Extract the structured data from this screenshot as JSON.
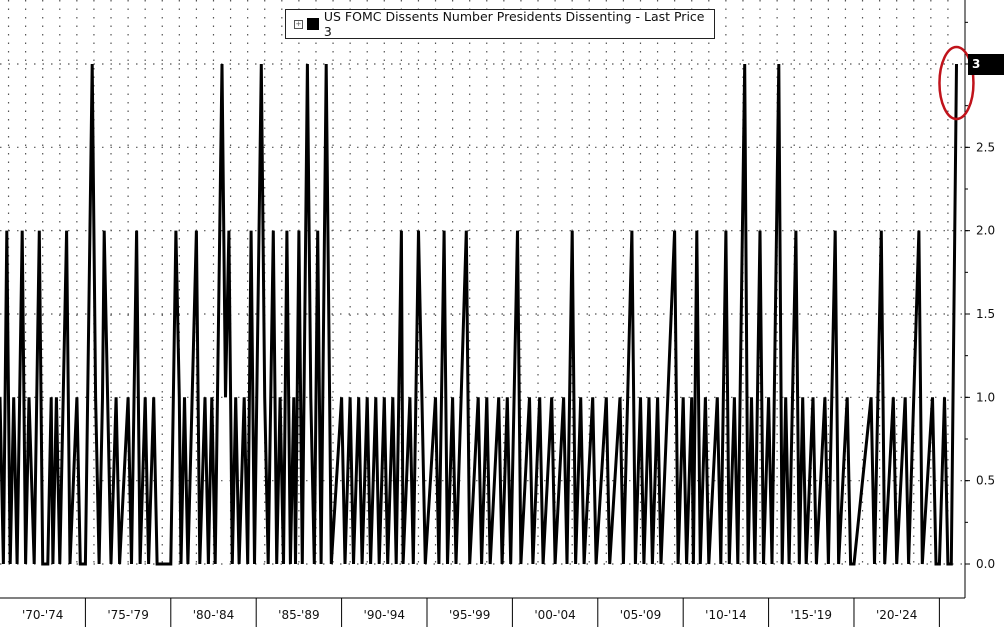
{
  "legend": {
    "label": "US FOMC Dissents Number Presidents Dissenting - Last Price 3"
  },
  "last_value_label": "3",
  "colors": {
    "line": "#000000",
    "annotation": "#c0131b",
    "grid": "#555555",
    "badge": "#000000"
  },
  "chart_data": {
    "type": "line",
    "title": "",
    "xlabel": "",
    "ylabel": "",
    "ylim": [
      0,
      3
    ],
    "yticks": [
      0.0,
      0.5,
      1.0,
      1.5,
      2.0,
      2.5,
      3.0
    ],
    "ytick_labels": [
      "0.0",
      "0.5",
      "1.0",
      "1.5",
      "2.0",
      "2.5",
      ""
    ],
    "x_range": [
      1970,
      2026.5
    ],
    "x_groups": [
      "'70-'74",
      "'75-'79",
      "'80-'84",
      "'85-'89",
      "'90-'94",
      "'95-'99",
      "'00-'04",
      "'05-'09",
      "'10-'14",
      "'15-'19",
      "'20-'24"
    ],
    "x_group_dividers": [
      1970,
      1975,
      1980,
      1985,
      1990,
      1995,
      2000,
      2005,
      2010,
      2015,
      2020,
      2025
    ],
    "grid": true,
    "legend_position": "top",
    "series": [
      {
        "name": "US FOMC Dissents Number Presidents Dissenting",
        "points": [
          [
            1970.0,
            1
          ],
          [
            1970.2,
            0
          ],
          [
            1970.4,
            2
          ],
          [
            1970.6,
            0
          ],
          [
            1970.8,
            1
          ],
          [
            1971.0,
            0
          ],
          [
            1971.3,
            2
          ],
          [
            1971.5,
            0
          ],
          [
            1971.7,
            1
          ],
          [
            1972.0,
            0
          ],
          [
            1972.3,
            2
          ],
          [
            1972.5,
            0
          ],
          [
            1972.8,
            0
          ],
          [
            1973.0,
            1
          ],
          [
            1973.1,
            0
          ],
          [
            1973.3,
            1
          ],
          [
            1973.5,
            0
          ],
          [
            1973.9,
            2
          ],
          [
            1974.1,
            0
          ],
          [
            1974.5,
            1
          ],
          [
            1974.7,
            0
          ],
          [
            1975.0,
            0
          ],
          [
            1975.4,
            3
          ],
          [
            1975.6,
            1
          ],
          [
            1975.8,
            0
          ],
          [
            1976.0,
            1
          ],
          [
            1976.1,
            2
          ],
          [
            1976.3,
            1
          ],
          [
            1976.5,
            0
          ],
          [
            1976.8,
            1
          ],
          [
            1977.0,
            0
          ],
          [
            1977.5,
            1
          ],
          [
            1977.7,
            0
          ],
          [
            1978.0,
            2
          ],
          [
            1978.2,
            0
          ],
          [
            1978.5,
            1
          ],
          [
            1978.7,
            0
          ],
          [
            1979.0,
            1
          ],
          [
            1979.2,
            0
          ],
          [
            1979.5,
            0
          ],
          [
            1980.0,
            0
          ],
          [
            1980.3,
            2
          ],
          [
            1980.5,
            1
          ],
          [
            1980.6,
            0
          ],
          [
            1980.8,
            1
          ],
          [
            1981.0,
            0
          ],
          [
            1981.5,
            2
          ],
          [
            1981.7,
            0
          ],
          [
            1982.0,
            1
          ],
          [
            1982.2,
            0
          ],
          [
            1982.4,
            1
          ],
          [
            1982.6,
            0
          ],
          [
            1983.0,
            3
          ],
          [
            1983.2,
            1
          ],
          [
            1983.4,
            2
          ],
          [
            1983.6,
            0
          ],
          [
            1983.8,
            1
          ],
          [
            1984.0,
            0
          ],
          [
            1984.3,
            1
          ],
          [
            1984.5,
            0
          ],
          [
            1984.7,
            2
          ],
          [
            1984.9,
            0
          ],
          [
            1985.3,
            3
          ],
          [
            1985.5,
            1
          ],
          [
            1985.7,
            0
          ],
          [
            1986.0,
            2
          ],
          [
            1986.2,
            0
          ],
          [
            1986.4,
            1
          ],
          [
            1986.6,
            0
          ],
          [
            1986.8,
            2
          ],
          [
            1987.0,
            0
          ],
          [
            1987.2,
            1
          ],
          [
            1987.3,
            0
          ],
          [
            1987.5,
            2
          ],
          [
            1987.7,
            0
          ],
          [
            1988.0,
            3
          ],
          [
            1988.2,
            1
          ],
          [
            1988.4,
            0
          ],
          [
            1988.6,
            2
          ],
          [
            1988.8,
            0
          ],
          [
            1989.1,
            3
          ],
          [
            1989.3,
            1
          ],
          [
            1989.4,
            0
          ],
          [
            1990.0,
            1
          ],
          [
            1990.2,
            0
          ],
          [
            1990.5,
            1
          ],
          [
            1990.7,
            0
          ],
          [
            1991.0,
            1
          ],
          [
            1991.2,
            0
          ],
          [
            1991.5,
            1
          ],
          [
            1991.7,
            0
          ],
          [
            1992.0,
            1
          ],
          [
            1992.2,
            0
          ],
          [
            1992.5,
            1
          ],
          [
            1992.7,
            0
          ],
          [
            1993.0,
            1
          ],
          [
            1993.2,
            0
          ],
          [
            1993.5,
            2
          ],
          [
            1993.6,
            0
          ],
          [
            1994.0,
            1
          ],
          [
            1994.2,
            0
          ],
          [
            1994.5,
            2
          ],
          [
            1994.7,
            1
          ],
          [
            1994.9,
            0
          ],
          [
            1995.5,
            1
          ],
          [
            1995.7,
            0
          ],
          [
            1996.0,
            2
          ],
          [
            1996.2,
            0
          ],
          [
            1996.5,
            1
          ],
          [
            1996.7,
            0
          ],
          [
            1997.3,
            2
          ],
          [
            1997.5,
            0
          ],
          [
            1998.0,
            1
          ],
          [
            1998.2,
            0
          ],
          [
            1998.5,
            1
          ],
          [
            1998.7,
            0
          ],
          [
            1999.2,
            1
          ],
          [
            1999.4,
            0
          ],
          [
            1999.7,
            1
          ],
          [
            1999.9,
            0
          ],
          [
            2000.3,
            2
          ],
          [
            2000.5,
            0
          ],
          [
            2001.0,
            1
          ],
          [
            2001.2,
            0
          ],
          [
            2001.6,
            1
          ],
          [
            2001.8,
            0
          ],
          [
            2002.3,
            1
          ],
          [
            2002.5,
            0
          ],
          [
            2003.0,
            1
          ],
          [
            2003.2,
            0
          ],
          [
            2003.5,
            2
          ],
          [
            2003.7,
            0
          ],
          [
            2004.0,
            1
          ],
          [
            2004.2,
            0
          ],
          [
            2004.7,
            1
          ],
          [
            2004.9,
            0
          ],
          [
            2005.5,
            1
          ],
          [
            2005.7,
            0
          ],
          [
            2006.3,
            1
          ],
          [
            2006.5,
            0
          ],
          [
            2007.0,
            2
          ],
          [
            2007.2,
            0
          ],
          [
            2007.5,
            1
          ],
          [
            2007.7,
            0
          ],
          [
            2008.0,
            1
          ],
          [
            2008.2,
            0
          ],
          [
            2008.5,
            1
          ],
          [
            2008.7,
            0
          ],
          [
            2009.5,
            2
          ],
          [
            2009.7,
            0
          ],
          [
            2010.0,
            1
          ],
          [
            2010.2,
            0
          ],
          [
            2010.5,
            1
          ],
          [
            2010.6,
            0
          ],
          [
            2010.8,
            2
          ],
          [
            2011.0,
            0
          ],
          [
            2011.3,
            1
          ],
          [
            2011.5,
            0
          ],
          [
            2012.0,
            1
          ],
          [
            2012.2,
            0
          ],
          [
            2012.5,
            2
          ],
          [
            2012.7,
            0
          ],
          [
            2013.0,
            1
          ],
          [
            2013.2,
            0
          ],
          [
            2013.6,
            3
          ],
          [
            2013.8,
            0
          ],
          [
            2014.0,
            1
          ],
          [
            2014.2,
            0
          ],
          [
            2014.5,
            2
          ],
          [
            2014.7,
            0
          ],
          [
            2015.0,
            1
          ],
          [
            2015.2,
            0
          ],
          [
            2015.6,
            3
          ],
          [
            2015.8,
            0
          ],
          [
            2016.0,
            1
          ],
          [
            2016.2,
            0
          ],
          [
            2016.6,
            2
          ],
          [
            2016.8,
            0
          ],
          [
            2017.0,
            1
          ],
          [
            2017.2,
            0
          ],
          [
            2017.6,
            1
          ],
          [
            2017.8,
            0
          ],
          [
            2018.3,
            1
          ],
          [
            2018.5,
            0
          ],
          [
            2018.9,
            2
          ],
          [
            2019.1,
            0
          ],
          [
            2019.6,
            1
          ],
          [
            2019.8,
            0
          ],
          [
            2020.0,
            0
          ],
          [
            2021.0,
            1
          ],
          [
            2021.2,
            0
          ],
          [
            2021.6,
            2
          ],
          [
            2021.8,
            0
          ],
          [
            2022.3,
            1
          ],
          [
            2022.5,
            0
          ],
          [
            2023.0,
            1
          ],
          [
            2023.2,
            0
          ],
          [
            2023.8,
            2
          ],
          [
            2024.0,
            0
          ],
          [
            2024.6,
            1
          ],
          [
            2024.8,
            0
          ],
          [
            2025.0,
            0
          ],
          [
            2025.3,
            1
          ],
          [
            2025.5,
            0
          ],
          [
            2025.7,
            0
          ],
          [
            2026.0,
            3
          ]
        ]
      }
    ],
    "annotations": [
      {
        "type": "ellipse",
        "label": "",
        "target": "last point"
      }
    ]
  }
}
